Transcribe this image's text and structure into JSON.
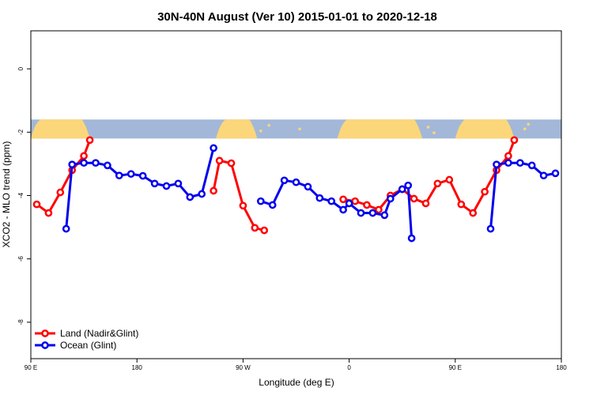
{
  "chart_data": {
    "type": "line",
    "title": "30N-40N August (Ver 10)   2015-01-01 to 2020-12-18",
    "xlabel": "Longitude (deg E)",
    "ylabel": "XCO2 - MLO trend (ppm)",
    "xlim": [
      90,
      540
    ],
    "ylim": [
      -9.15,
      1.2
    ],
    "x_tick_values": [
      90,
      180,
      270,
      360,
      450,
      540
    ],
    "x_tick_labels": [
      "90 E",
      "180",
      "90 W",
      "0",
      "90 E",
      "180"
    ],
    "y_tick_values": [
      0,
      -2,
      -4,
      -6,
      -8
    ],
    "y_tick_labels": [
      "0",
      "-2",
      "-4",
      "-6",
      "-8"
    ],
    "legend_position": "bottom-left",
    "map_band": {
      "y_top": -1.6,
      "y_bottom": -2.2,
      "ocean_color": "#a3b8d8",
      "land_color": "#fcd67a"
    },
    "series": [
      {
        "name": "Land (Nadir&Glint)",
        "color": "#ff0000",
        "segments": [
          [
            [
              95,
              -4.28
            ],
            [
              105,
              -4.55
            ],
            [
              115,
              -3.9
            ],
            [
              125,
              -3.2
            ],
            [
              135,
              -2.75
            ],
            [
              140,
              -2.25
            ]
          ],
          [
            [
              245,
              -3.85
            ],
            [
              250,
              -2.9
            ],
            [
              260,
              -2.98
            ],
            [
              270,
              -4.32
            ],
            [
              280,
              -5.02
            ],
            [
              288,
              -5.1
            ]
          ],
          [
            [
              355,
              -4.12
            ],
            [
              365,
              -4.18
            ],
            [
              375,
              -4.3
            ],
            [
              385,
              -4.45
            ],
            [
              395,
              -4.0
            ],
            [
              405,
              -3.8
            ],
            [
              415,
              -4.1
            ],
            [
              425,
              -4.25
            ],
            [
              435,
              -3.62
            ],
            [
              445,
              -3.5
            ],
            [
              455,
              -4.28
            ],
            [
              465,
              -4.55
            ],
            [
              475,
              -3.88
            ],
            [
              485,
              -3.2
            ],
            [
              495,
              -2.75
            ],
            [
              500,
              -2.25
            ]
          ]
        ]
      },
      {
        "name": "Ocean (Glint)",
        "color": "#0000ee",
        "segments": [
          [
            [
              120,
              -5.05
            ],
            [
              125,
              -3.02
            ],
            [
              135,
              -2.97
            ],
            [
              145,
              -2.97
            ],
            [
              155,
              -3.05
            ],
            [
              165,
              -3.37
            ],
            [
              175,
              -3.32
            ],
            [
              185,
              -3.38
            ],
            [
              195,
              -3.62
            ],
            [
              205,
              -3.7
            ],
            [
              215,
              -3.62
            ],
            [
              225,
              -4.05
            ],
            [
              235,
              -3.95
            ],
            [
              245,
              -2.5
            ]
          ],
          [
            [
              285,
              -4.18
            ],
            [
              295,
              -4.3
            ],
            [
              305,
              -3.52
            ],
            [
              315,
              -3.58
            ],
            [
              325,
              -3.72
            ],
            [
              335,
              -4.08
            ],
            [
              345,
              -4.18
            ],
            [
              355,
              -4.45
            ],
            [
              360,
              -4.25
            ],
            [
              370,
              -4.55
            ],
            [
              380,
              -4.55
            ],
            [
              390,
              -4.62
            ],
            [
              395,
              -4.1
            ],
            [
              405,
              -3.8
            ],
            [
              410,
              -3.68
            ],
            [
              413,
              -5.35
            ]
          ],
          [
            [
              480,
              -5.05
            ],
            [
              485,
              -3.02
            ],
            [
              495,
              -2.97
            ],
            [
              505,
              -2.97
            ],
            [
              515,
              -3.05
            ],
            [
              525,
              -3.37
            ],
            [
              535,
              -3.3
            ]
          ]
        ]
      }
    ]
  }
}
